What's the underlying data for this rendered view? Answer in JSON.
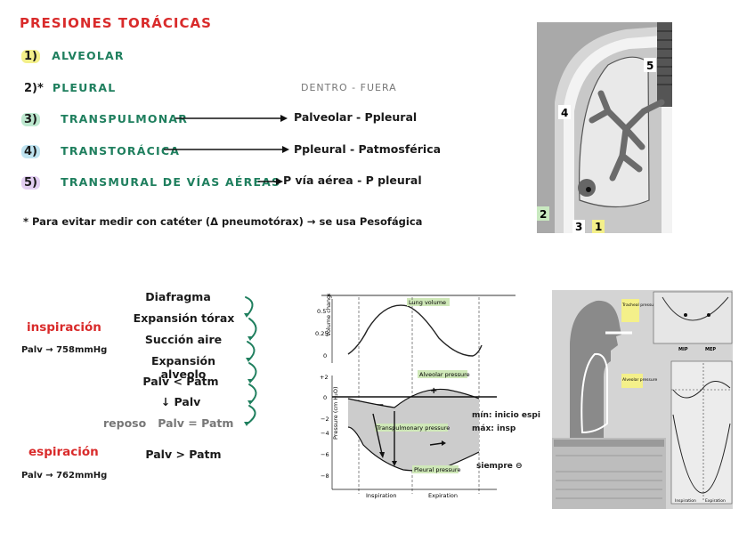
{
  "header": {
    "title": "PRESIONES TORÁCICAS"
  },
  "list": [
    {
      "num": "1)",
      "label": "ALVEOLAR",
      "formula": "",
      "hl": "#f4f08a"
    },
    {
      "num": "2)*",
      "label": "PLEURAL",
      "formula": "",
      "hl": ""
    },
    {
      "num": "3)",
      "label": "TRANSPULMONAR",
      "formula": "Palveolar - Ppleural",
      "hl": "#bde8cf"
    },
    {
      "num": "4)",
      "label": "TRANSTORÁCICA",
      "formula": "Ppleural - Patmosférica",
      "hl": "#bfe3f0"
    },
    {
      "num": "5)",
      "label": "TRANSMURAL DE VÍAS AÉREAS",
      "formula": "P vía aérea - P pleural",
      "hl": "#e3cff2"
    }
  ],
  "inside_outside": "DENTRO - FUERA",
  "footnote": "* Para evitar medir con catéter (Δ pneumotórax) → se usa Pesofágica",
  "lung_image": {
    "labels": [
      "5",
      "4",
      "2",
      "3",
      "1"
    ]
  },
  "inspiration": {
    "title": "inspiración",
    "value": "Palv → 758mmHg",
    "steps": [
      "Diafragma",
      "Expansión tórax",
      "Succión aire",
      "Expansión alveolo",
      "Palv < Patm",
      "↓ Palv"
    ],
    "rest": "reposo   Palv = Patm"
  },
  "expiration": {
    "title": "espiración",
    "value": "Palv → 762mmHg",
    "relation": "Palv > Patm"
  },
  "chart": {
    "top_ylabel": "Volume change (liters)",
    "top_ticks": [
      "0.5",
      "0.25",
      "0"
    ],
    "top_curve_label": "Lung volume",
    "bottom_ylabel": "Pressure (cm H₂O)",
    "bottom_ticks": [
      "+2",
      "0",
      "−2",
      "−4",
      "−6",
      "−8"
    ],
    "alveolar_label": "Alveolar pressure",
    "transpulmonary_label": "Transpulmonary pressure",
    "pleural_label": "Pleural pressure",
    "plus_sign": "+",
    "minus_sign": "−",
    "xlabels": [
      "Inspiration",
      "Expiration"
    ]
  },
  "chart_notes": [
    "mín: inicio espi",
    "máx: insp",
    "siempre ⊖"
  ],
  "right_scan": {
    "labels": [
      "Tracheal pressure",
      "Alveolar pressure",
      "MIP",
      "MEP",
      "Inspiration",
      "Expiration"
    ]
  }
}
